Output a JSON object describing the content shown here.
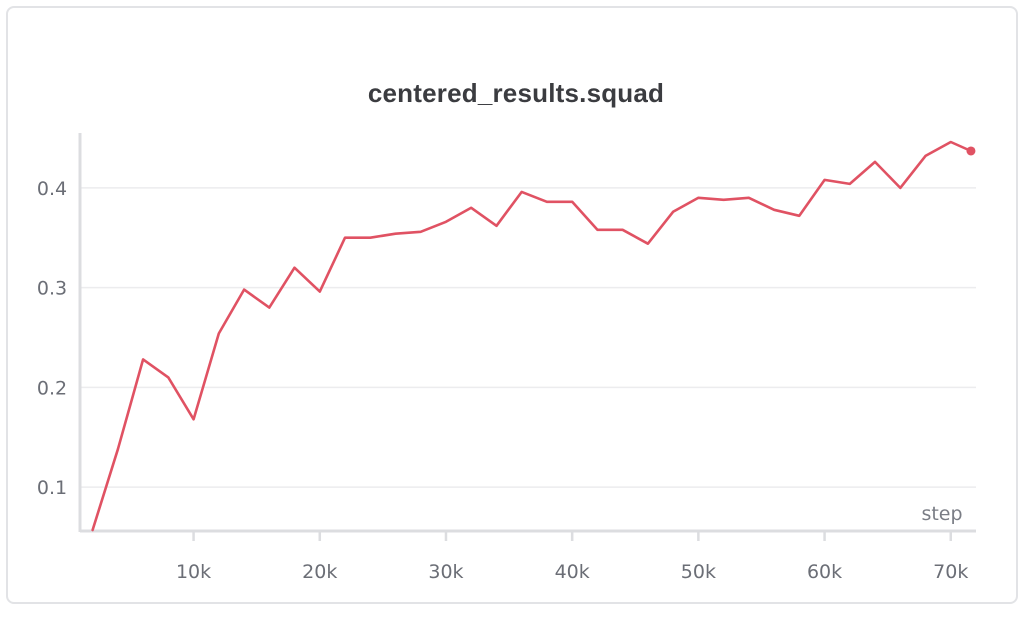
{
  "chart_data": {
    "type": "line",
    "title": "centered_results.squad",
    "xlabel": "step",
    "ylabel": "",
    "xlim": [
      1000,
      72000
    ],
    "ylim": [
      0.056,
      0.455
    ],
    "x_ticks": [
      10000,
      20000,
      30000,
      40000,
      50000,
      60000,
      70000
    ],
    "x_tick_labels": [
      "10k",
      "20k",
      "30k",
      "40k",
      "50k",
      "60k",
      "70k"
    ],
    "y_ticks": [
      0.1,
      0.2,
      0.3,
      0.4
    ],
    "y_tick_labels": [
      "0.1",
      "0.2",
      "0.3",
      "0.4"
    ],
    "grid": true,
    "legend": "none",
    "series": [
      {
        "color": "#e05263",
        "x": [
          2000,
          4000,
          6000,
          8000,
          10000,
          12000,
          14000,
          16000,
          18000,
          20000,
          22000,
          24000,
          26000,
          28000,
          30000,
          32000,
          34000,
          36000,
          38000,
          40000,
          42000,
          44000,
          46000,
          48000,
          50000,
          52000,
          54000,
          56000,
          58000,
          60000,
          62000,
          64000,
          66000,
          68000,
          70000,
          71600
        ],
        "values": [
          0.057,
          0.138,
          0.228,
          0.21,
          0.168,
          0.254,
          0.298,
          0.28,
          0.32,
          0.296,
          0.35,
          0.35,
          0.354,
          0.356,
          0.366,
          0.38,
          0.362,
          0.396,
          0.386,
          0.386,
          0.358,
          0.358,
          0.344,
          0.376,
          0.39,
          0.388,
          0.39,
          0.378,
          0.372,
          0.408,
          0.404,
          0.426,
          0.4,
          0.432,
          0.446,
          0.437
        ]
      }
    ]
  }
}
